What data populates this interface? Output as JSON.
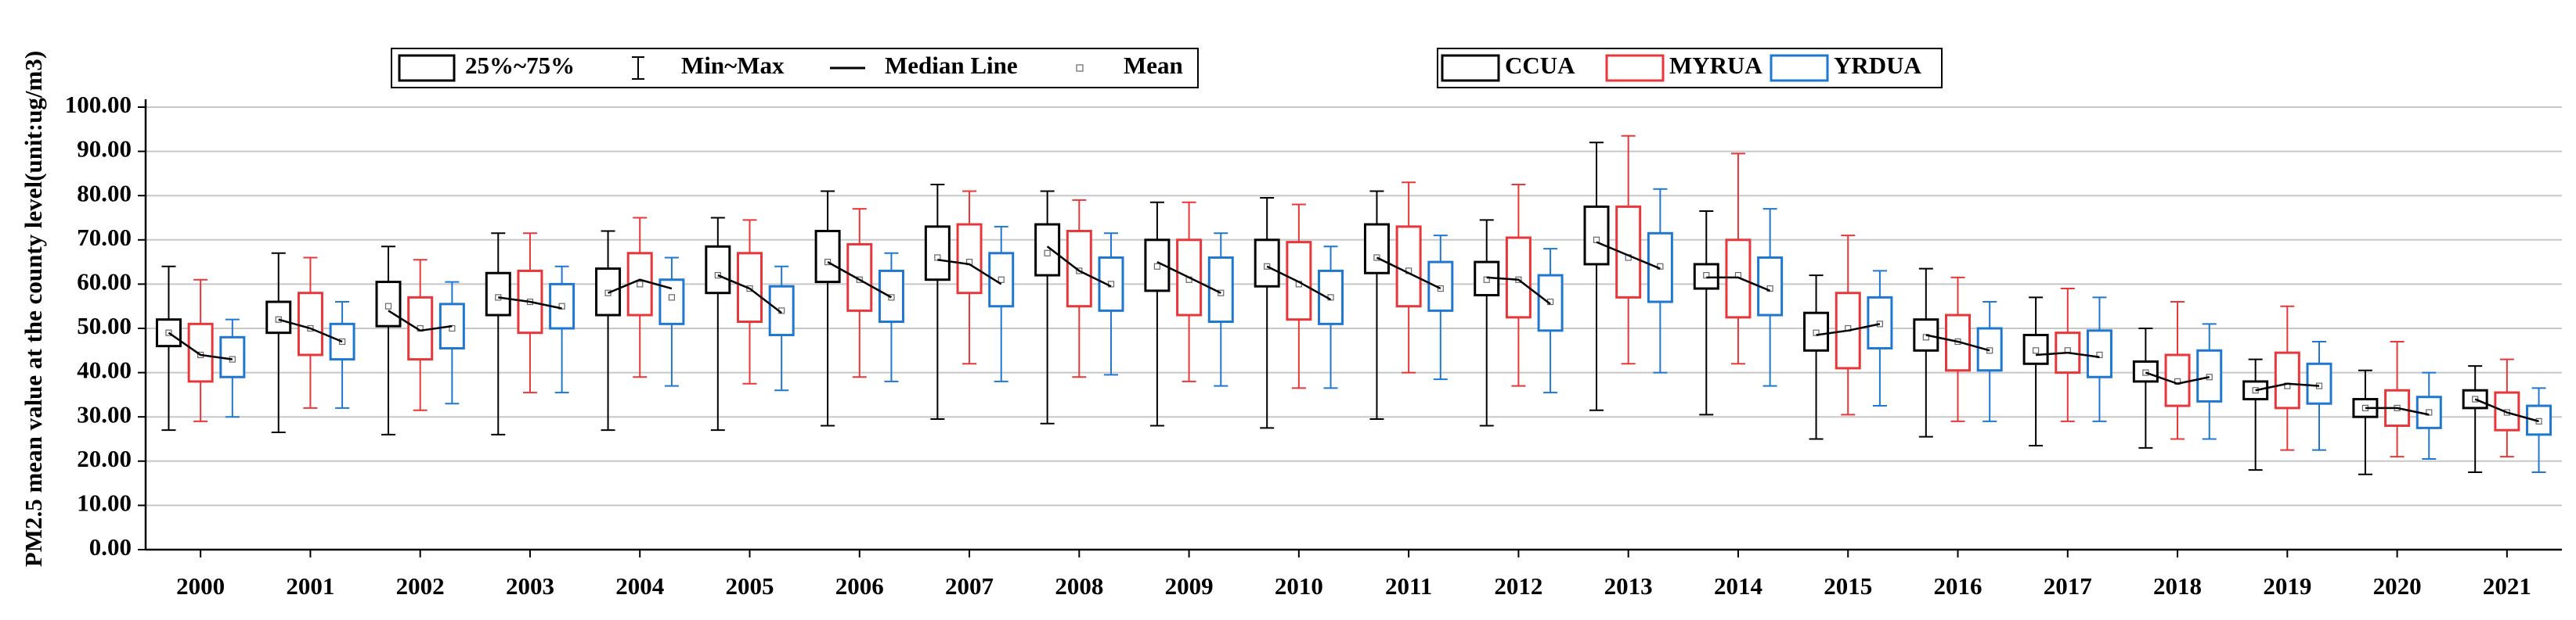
{
  "chart_data": {
    "type": "box",
    "y_label": "PM2.5 mean value at the county level(unit:ug/m3)",
    "legend_labels": {
      "box": "25%~75%",
      "whisker": "Min~Max",
      "median_line": "Median Line",
      "mean": "Mean"
    },
    "categories": [
      "2000",
      "2001",
      "2002",
      "2003",
      "2004",
      "2005",
      "2006",
      "2007",
      "2008",
      "2009",
      "2010",
      "2011",
      "2012",
      "2013",
      "2014",
      "2015",
      "2016",
      "2017",
      "2018",
      "2019",
      "2020",
      "2021"
    ],
    "ylim": [
      0,
      100
    ],
    "yticks": [
      {
        "value": 0,
        "label": "0.00"
      },
      {
        "value": 10,
        "label": "10.00"
      },
      {
        "value": 20,
        "label": "20.00"
      },
      {
        "value": 30,
        "label": "30.00"
      },
      {
        "value": 40,
        "label": "40.00"
      },
      {
        "value": 50,
        "label": "50.00"
      },
      {
        "value": 60,
        "label": "60.00"
      },
      {
        "value": 70,
        "label": "70.00"
      },
      {
        "value": 80,
        "label": "80.00"
      },
      {
        "value": 90,
        "label": "90.00"
      },
      {
        "value": 100,
        "label": "100.00"
      }
    ],
    "grid": true,
    "median_line_color": "#000000",
    "series": [
      {
        "name": "CCUA",
        "color": "#000000",
        "min": [
          27,
          26.5,
          26,
          26,
          27,
          27,
          28,
          29.5,
          28.5,
          28,
          27.5,
          29.5,
          28,
          31.5,
          30.5,
          25,
          25.5,
          23.5,
          23,
          18,
          17,
          17.5
        ],
        "q1": [
          46,
          49,
          50.5,
          53,
          53,
          58,
          60.5,
          61,
          62,
          58.5,
          59.5,
          62.5,
          57.5,
          64.5,
          59,
          45,
          45,
          42,
          38,
          34,
          30,
          32
        ],
        "median": [
          49,
          52,
          54,
          57,
          58,
          62,
          65,
          65.5,
          68.5,
          65,
          64,
          66,
          61.5,
          69.5,
          61.5,
          48.5,
          48.5,
          44,
          40,
          36,
          32,
          34
        ],
        "q3": [
          52,
          56,
          60.5,
          62.5,
          63.5,
          68.5,
          72,
          73,
          73.5,
          70,
          70,
          73.5,
          65,
          77.5,
          64.5,
          53.5,
          52,
          48.5,
          42.5,
          38,
          34,
          36
        ],
        "max": [
          64,
          67,
          68.5,
          71.5,
          72,
          75,
          81,
          82.5,
          81,
          78.5,
          79.5,
          81,
          74.5,
          92,
          76.5,
          62,
          63.5,
          57,
          50,
          43,
          40.5,
          41.5
        ],
        "mean": [
          49,
          52,
          55,
          57,
          58,
          62,
          65,
          66,
          67,
          64,
          64,
          66,
          61,
          70,
          62,
          49,
          48,
          45,
          40,
          36,
          32,
          34
        ]
      },
      {
        "name": "MYRUA",
        "color": "#e8373a",
        "min": [
          29,
          32,
          31.5,
          35.5,
          39,
          37.5,
          39,
          42,
          39,
          38,
          36.5,
          40,
          37,
          42,
          42,
          30.5,
          29,
          29,
          25,
          22.5,
          21,
          21
        ],
        "q1": [
          38,
          44,
          43,
          49,
          53,
          51.5,
          54,
          58,
          55,
          53,
          52,
          55,
          52.5,
          57,
          52.5,
          41,
          40.5,
          40,
          32.5,
          32,
          28,
          27
        ],
        "median": [
          44,
          50,
          49.5,
          56,
          61,
          59,
          61,
          64.5,
          63,
          61.5,
          60.5,
          62.5,
          61,
          66.5,
          61.5,
          49.5,
          47,
          44.5,
          37.5,
          37.5,
          32,
          31
        ],
        "q3": [
          51,
          58,
          57,
          63,
          67,
          67,
          69,
          73.5,
          72,
          70,
          69.5,
          73,
          70.5,
          77.5,
          70,
          58,
          53,
          49,
          44,
          44.5,
          36,
          35.5
        ],
        "max": [
          61,
          66,
          65.5,
          71.5,
          75,
          74.5,
          77,
          81,
          79,
          78.5,
          78,
          83,
          82.5,
          93.5,
          89.5,
          71,
          61.5,
          59,
          56,
          55,
          47,
          43
        ],
        "mean": [
          44,
          50,
          50,
          56,
          60,
          59,
          61,
          65,
          63,
          61,
          60,
          63,
          61,
          66,
          62,
          50,
          47,
          45,
          38,
          37,
          32,
          31
        ]
      },
      {
        "name": "YRDUA",
        "color": "#1f77d0",
        "min": [
          30,
          32,
          33,
          35.5,
          37,
          36,
          38,
          38,
          39.5,
          37,
          36.5,
          38.5,
          35.5,
          40,
          37,
          32.5,
          29,
          29,
          25,
          22.5,
          20.5,
          17.5
        ],
        "q1": [
          39,
          43,
          45.5,
          50,
          51,
          48.5,
          51.5,
          55,
          54,
          51.5,
          51,
          54,
          49.5,
          56,
          53,
          45.5,
          40.5,
          39,
          33.5,
          33,
          27.5,
          26
        ],
        "median": [
          43,
          47,
          50.5,
          54.5,
          59,
          53.5,
          57,
          60,
          59.5,
          58,
          56.5,
          59,
          55.5,
          63.5,
          58.5,
          51,
          45,
          43.5,
          39,
          37,
          30.5,
          29
        ],
        "q3": [
          48,
          51,
          55.5,
          60,
          61,
          59.5,
          63,
          67,
          66,
          66,
          63,
          65,
          62,
          71.5,
          66,
          57,
          50,
          49.5,
          45,
          42,
          34.5,
          32.5
        ],
        "max": [
          52,
          56,
          60.5,
          64,
          66,
          64,
          67,
          73,
          71.5,
          71.5,
          68.5,
          71,
          68,
          81.5,
          77,
          63,
          56,
          57,
          51,
          47,
          40,
          36.5
        ],
        "mean": [
          43,
          47,
          50,
          55,
          57,
          54,
          57,
          61,
          60,
          58,
          57,
          59,
          56,
          64,
          59,
          51,
          45,
          44,
          39,
          37,
          31,
          29
        ]
      }
    ]
  }
}
